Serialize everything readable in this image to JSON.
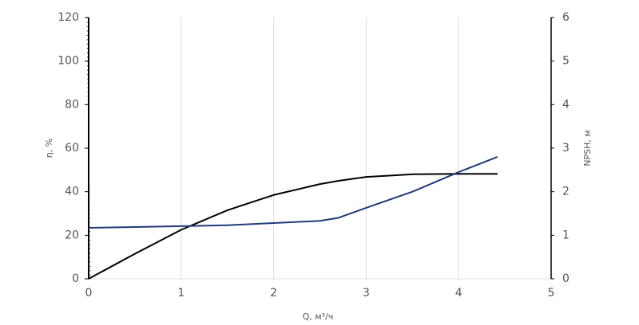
{
  "chart_data": {
    "type": "line",
    "xlabel": "Q, м³/ч",
    "ylabel": "η, %",
    "y2label": "NPSH, м",
    "x": [
      0,
      0.5,
      1,
      1.5,
      2,
      2.5,
      2.7,
      3,
      3.5,
      4,
      4.42
    ],
    "series": [
      {
        "name": "η",
        "color": "#000000",
        "values": [
          0,
          11.5,
          22.5,
          31.5,
          38.5,
          43.5,
          45,
          46.8,
          48,
          48.2,
          48.2
        ]
      },
      {
        "name": "NPSH",
        "color": "#1f3a7a",
        "axis": "y2",
        "values": [
          1.17,
          1.19,
          1.21,
          1.23,
          1.28,
          1.33,
          1.4,
          1.63,
          2.0,
          2.45,
          2.8
        ]
      }
    ],
    "xlim": [
      0,
      5
    ],
    "xticks": [
      0,
      1,
      2,
      3,
      4,
      5
    ],
    "ylim": [
      0,
      120
    ],
    "yticks": [
      0,
      20,
      40,
      60,
      80,
      100,
      120
    ],
    "y2lim": [
      0,
      6
    ],
    "y2ticks": [
      0,
      1,
      2,
      3,
      4,
      5,
      6
    ],
    "grid": true
  }
}
